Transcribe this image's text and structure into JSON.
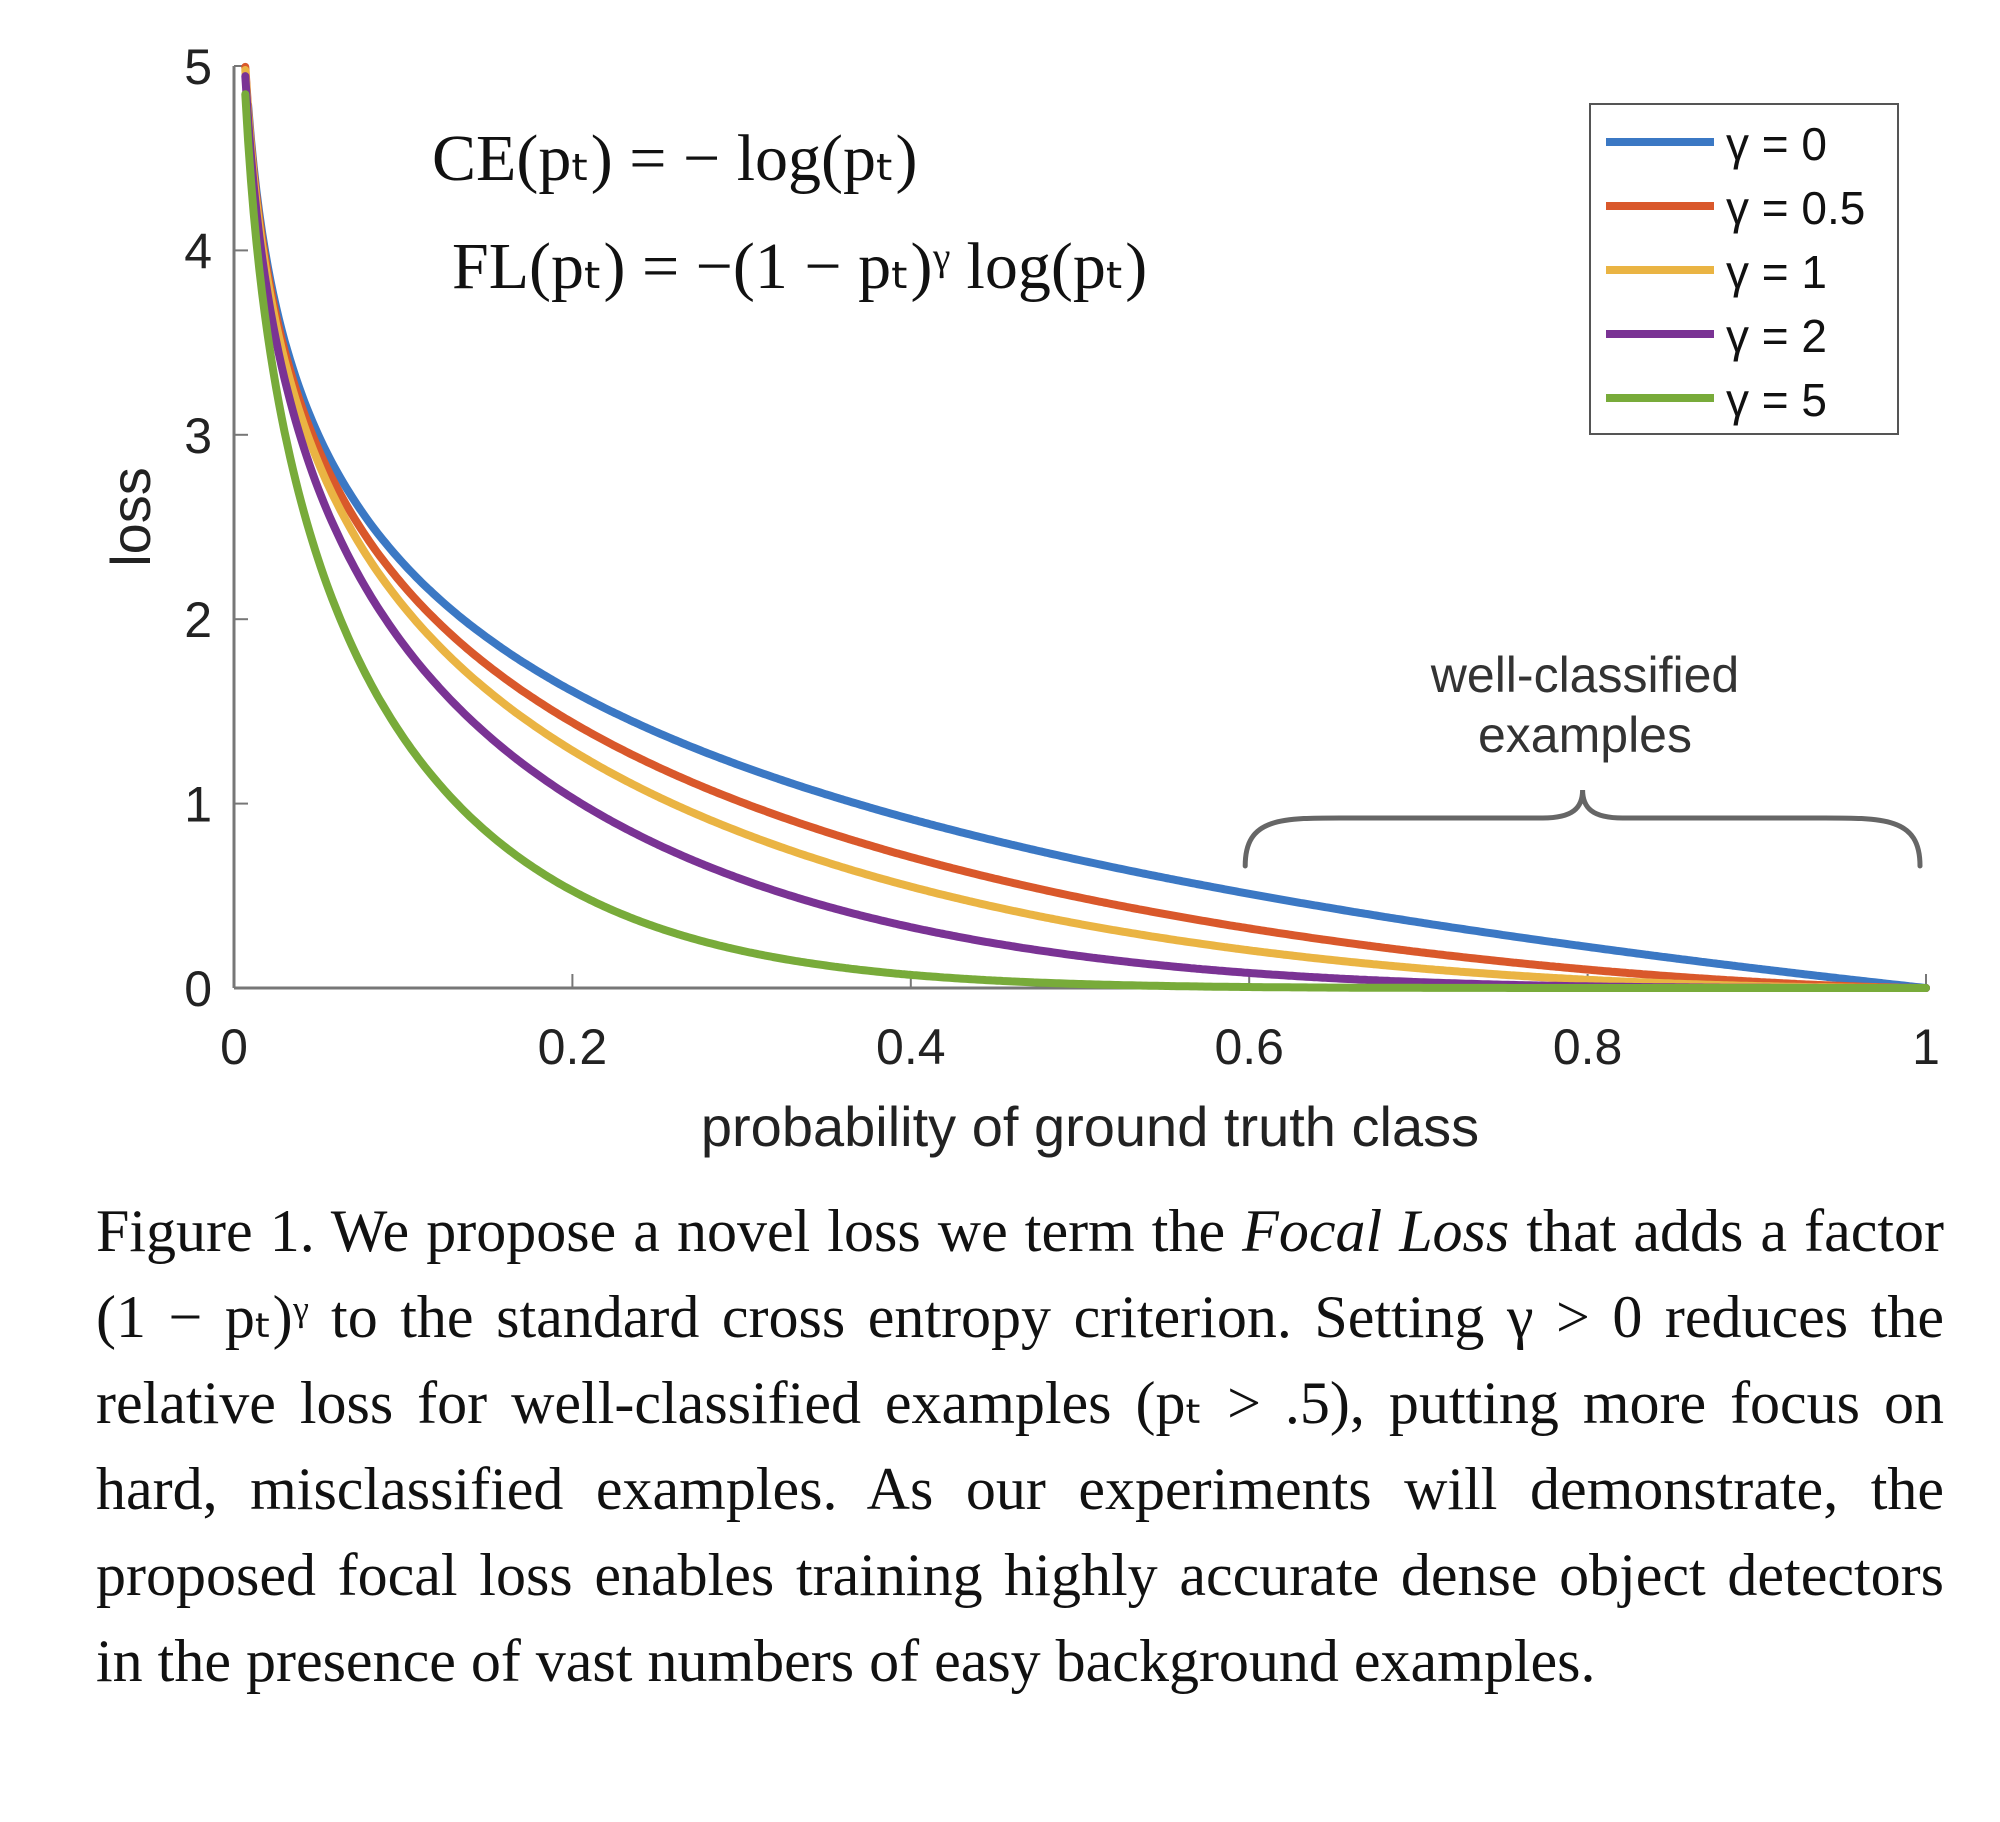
{
  "chart_data": {
    "type": "line",
    "xlabel": "probability of ground truth class",
    "ylabel": "loss",
    "xlim": [
      0,
      1
    ],
    "ylim": [
      0,
      5
    ],
    "x_ticks": [
      "0",
      "0.2",
      "0.4",
      "0.6",
      "0.8",
      "1"
    ],
    "y_ticks": [
      "0",
      "1",
      "2",
      "3",
      "4",
      "5"
    ],
    "legend_position": "top-right",
    "formulas": {
      "ce": "CE(pₜ) = − log(pₜ)",
      "fl": "FL(pₜ) = −(1 − pₜ)ᵞ log(pₜ)"
    },
    "annotation": {
      "line1": "well-classified",
      "line2": "examples",
      "x_range": [
        0.6,
        1
      ]
    },
    "series": [
      {
        "name": "γ = 0",
        "gamma": 0,
        "color": "#3b78c4",
        "x": [
          0.01,
          0.02,
          0.03,
          0.05,
          0.07,
          0.1,
          0.15,
          0.2,
          0.25,
          0.3,
          0.35,
          0.4,
          0.45,
          0.5,
          0.55,
          0.6,
          0.65,
          0.7,
          0.75,
          0.8,
          0.85,
          0.9,
          0.95,
          1.0
        ],
        "values": [
          4.61,
          3.91,
          3.51,
          3.0,
          2.66,
          2.3,
          1.9,
          1.61,
          1.39,
          1.2,
          1.05,
          0.92,
          0.8,
          0.69,
          0.6,
          0.51,
          0.43,
          0.36,
          0.29,
          0.22,
          0.16,
          0.11,
          0.05,
          0.0
        ]
      },
      {
        "name": "γ = 0.5",
        "gamma": 0.5,
        "color": "#d9582b",
        "x": [
          0.01,
          0.02,
          0.03,
          0.05,
          0.07,
          0.1,
          0.15,
          0.2,
          0.25,
          0.3,
          0.35,
          0.4,
          0.45,
          0.5,
          0.55,
          0.6,
          0.65,
          0.7,
          0.75,
          0.8,
          0.85,
          0.9,
          0.95,
          1.0
        ],
        "values": [
          4.58,
          3.87,
          3.46,
          2.92,
          2.57,
          2.18,
          1.75,
          1.44,
          1.2,
          1.01,
          0.85,
          0.71,
          0.59,
          0.49,
          0.4,
          0.32,
          0.25,
          0.2,
          0.14,
          0.1,
          0.06,
          0.03,
          0.01,
          0.0
        ]
      },
      {
        "name": "γ = 1",
        "gamma": 1,
        "color": "#eab443",
        "x": [
          0.01,
          0.02,
          0.03,
          0.05,
          0.07,
          0.1,
          0.15,
          0.2,
          0.25,
          0.3,
          0.35,
          0.4,
          0.45,
          0.5,
          0.55,
          0.6,
          0.65,
          0.7,
          0.75,
          0.8,
          0.85,
          0.9,
          0.95,
          1.0
        ],
        "values": [
          4.56,
          3.83,
          3.4,
          2.85,
          2.47,
          2.07,
          1.61,
          1.29,
          1.04,
          0.84,
          0.68,
          0.55,
          0.44,
          0.35,
          0.27,
          0.2,
          0.15,
          0.11,
          0.07,
          0.04,
          0.02,
          0.01,
          0.0,
          0.0
        ]
      },
      {
        "name": "γ = 2",
        "gamma": 2,
        "color": "#7a3394",
        "x": [
          0.01,
          0.02,
          0.03,
          0.05,
          0.07,
          0.1,
          0.15,
          0.2,
          0.25,
          0.3,
          0.35,
          0.4,
          0.45,
          0.5,
          0.55,
          0.6,
          0.65,
          0.7,
          0.75,
          0.8,
          0.85,
          0.9,
          0.95,
          1.0
        ],
        "values": [
          4.51,
          3.76,
          3.3,
          2.7,
          2.3,
          1.87,
          1.37,
          1.03,
          0.78,
          0.59,
          0.44,
          0.33,
          0.24,
          0.17,
          0.12,
          0.08,
          0.05,
          0.03,
          0.02,
          0.01,
          0.0,
          0.0,
          0.0,
          0.0
        ]
      },
      {
        "name": "γ = 5",
        "gamma": 5,
        "color": "#78ab3a",
        "x": [
          0.01,
          0.02,
          0.03,
          0.05,
          0.07,
          0.1,
          0.15,
          0.2,
          0.25,
          0.3,
          0.35,
          0.4,
          0.45,
          0.5,
          0.55,
          0.6,
          0.65,
          0.7,
          0.75,
          0.8,
          0.85,
          0.9,
          0.95,
          1.0
        ],
        "values": [
          4.38,
          3.54,
          3.01,
          2.32,
          1.83,
          1.36,
          0.84,
          0.53,
          0.33,
          0.2,
          0.12,
          0.07,
          0.04,
          0.02,
          0.01,
          0.0,
          0.0,
          0.0,
          0.0,
          0.0,
          0.0,
          0.0,
          0.0,
          0.0
        ]
      }
    ]
  },
  "caption": {
    "label": "Figure 1.",
    "text_before_term": "We propose a novel loss we term the",
    "term": "Focal Loss",
    "text_after_term": "that adds a factor (1 − pₜ)ᵞ to the standard cross entropy criterion. Setting γ > 0 reduces the relative loss for well-classified examples (pₜ > .5), putting more focus on hard, misclassified examples. As our experiments will demonstrate, the proposed focal loss enables training highly accurate dense object detectors in the presence of vast numbers of easy background examples."
  }
}
